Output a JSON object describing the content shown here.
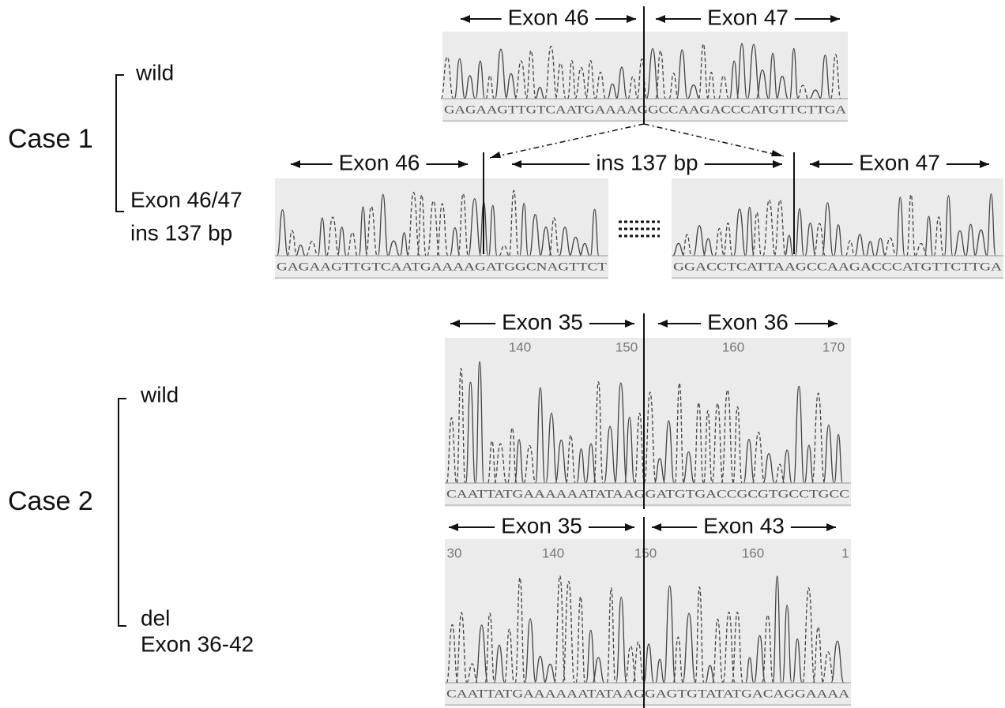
{
  "case1": {
    "label": "Case 1",
    "wild_label": "wild",
    "mutant_label": [
      "Exon 46/47",
      "ins 137 bp"
    ],
    "wild_panel": {
      "headers": [
        "Exon 46",
        "Exon 47"
      ],
      "sequence": "GAGAAGTTGTCAATGAAAAGGCCAAGACCCATGTTCTTGA"
    },
    "mutant_panel": {
      "headers": [
        "Exon 46",
        "ins 137 bp",
        "Exon 47"
      ],
      "sequences": [
        "GAGAAGTTGTCAATGAAAAGATGGCNAGTTCT",
        "GGACCTCATTAAGCCAAGACCCATGTTCTTGA"
      ]
    }
  },
  "case2": {
    "label": "Case 2",
    "wild_label": "wild",
    "mutant_label": [
      "del",
      "Exon 36-42"
    ],
    "wild_panel": {
      "headers": [
        "Exon 35",
        "Exon 36"
      ],
      "positions": [
        140,
        150,
        160,
        170
      ],
      "sequence": "CAATTATGAAAAAATATAAGGATGTGACCGCGTGCCTGCC"
    },
    "mutant_panel": {
      "headers": [
        "Exon 35",
        "Exon 43"
      ],
      "positions": [
        30,
        140,
        150,
        160,
        1
      ],
      "sequence": "CAATTATGAAAAAATATAAGGAGTGTATATGACAGGAAAA"
    }
  }
}
